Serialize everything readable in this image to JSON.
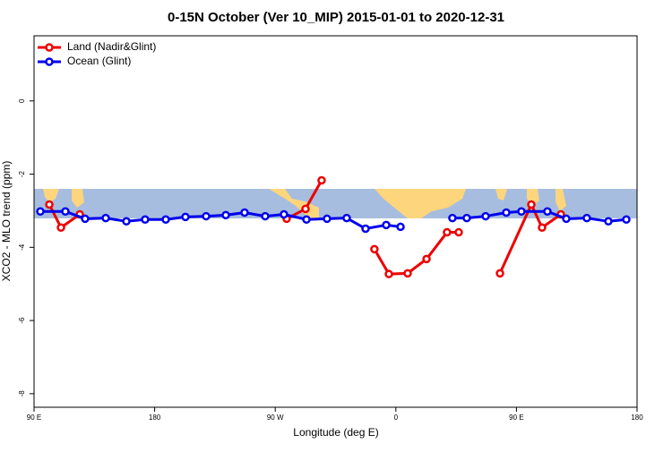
{
  "chart_data": {
    "type": "line",
    "title": "0-15N October (Ver 10_MIP)   2015-01-01 to 2020-12-31",
    "x_label": "Longitude (deg E)",
    "y_label": "XCO2 - MLO trend (ppm)",
    "xlim": [
      90,
      540
    ],
    "ylim": [
      -8.37,
      1.78
    ],
    "xticks": [
      {
        "value": 90,
        "label": "90 E"
      },
      180,
      {
        "value": 270,
        "label": "90 W"
      },
      {
        "value": 360,
        "label": "0"
      },
      {
        "value": 450,
        "label": "90 E"
      },
      {
        "value": 540,
        "label": "180"
      }
    ],
    "yticks": [
      0,
      -2,
      -4,
      -6,
      -8
    ],
    "legend": "top-left",
    "series": [
      {
        "name": "Land (Nadir&Glint)",
        "color": "#ee0000",
        "x": [
          101.4,
          110.1,
          124.1,
          200,
          278.5,
          292.6,
          304.6,
          325,
          344.0,
          354.8,
          368.8,
          382.9,
          398.2,
          406.9,
          420,
          437.7,
          461.1,
          469.1,
          483.1
        ],
        "values": [
          -2.83,
          -3.46,
          -3.1,
          null,
          -3.22,
          -2.95,
          -2.17,
          null,
          -4.05,
          -4.73,
          -4.71,
          -4.32,
          -3.59,
          -3.59,
          null,
          -4.71,
          -2.83,
          -3.46,
          -3.1
        ]
      },
      {
        "name": "Ocean (Glint)",
        "color": "#0000ee",
        "x": [
          94.7,
          113.4,
          128.1,
          143.5,
          158.9,
          172.9,
          188.3,
          203.0,
          218.4,
          233.1,
          247.1,
          262.5,
          276.5,
          293.3,
          308.6,
          323.3,
          337.4,
          352.8,
          363.5,
          383,
          402.2,
          412.9,
          427.0,
          442.4,
          453.7,
          473.1,
          487.2,
          502.5,
          518.6,
          532.0
        ],
        "values": [
          -3.02,
          -3.02,
          -3.22,
          -3.2,
          -3.29,
          -3.24,
          -3.24,
          -3.17,
          -3.15,
          -3.12,
          -3.05,
          -3.15,
          -3.1,
          -3.24,
          -3.22,
          -3.2,
          -3.49,
          -3.39,
          -3.44,
          null,
          -3.2,
          -3.2,
          -3.15,
          -3.05,
          -3.02,
          -3.02,
          -3.22,
          -3.2,
          -3.29,
          -3.24
        ]
      }
    ]
  }
}
